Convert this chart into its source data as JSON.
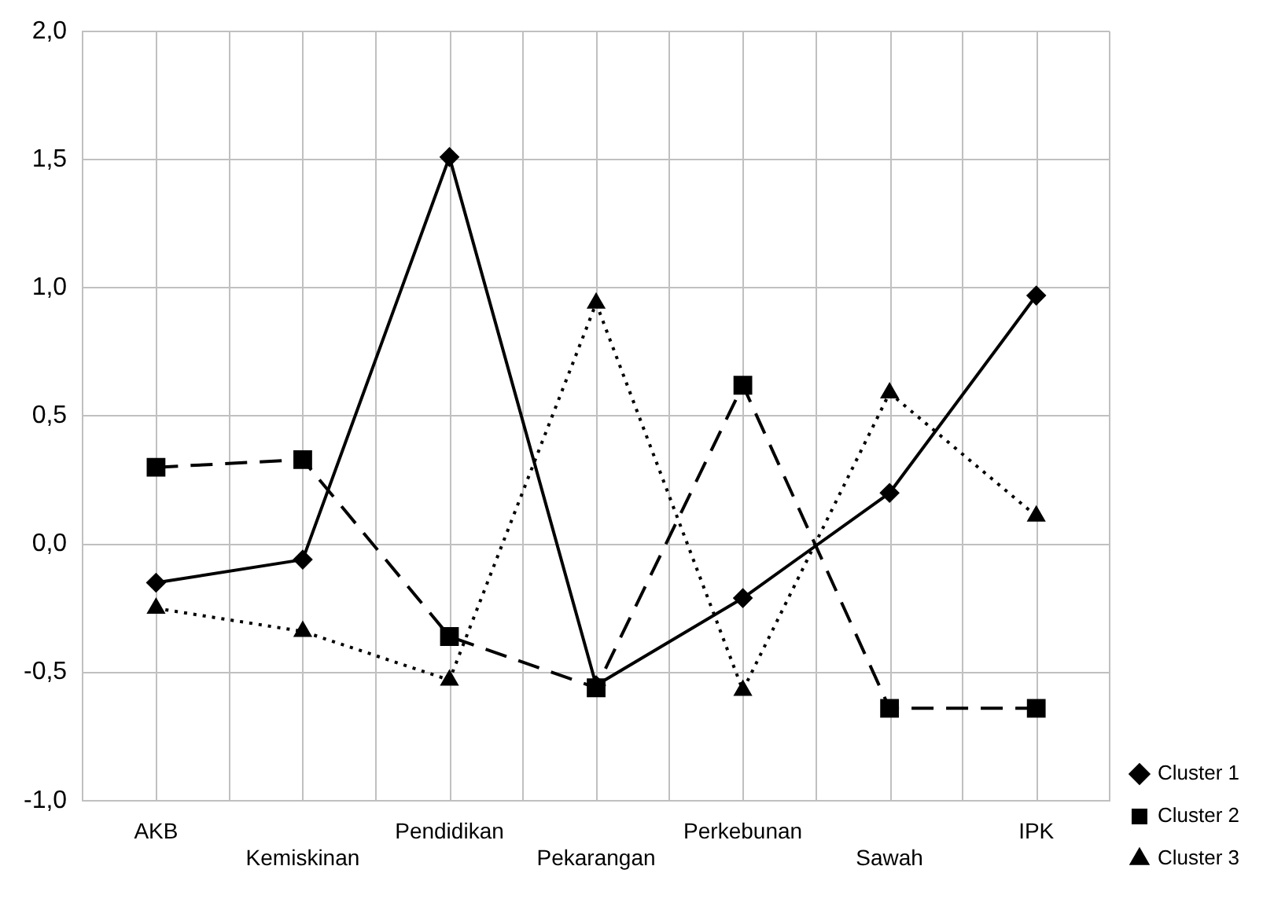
{
  "chart_data": {
    "type": "line",
    "categories": [
      "AKB",
      "Kemiskinan",
      "Pendidikan",
      "Pekarangan",
      "Perkebunan",
      "Sawah",
      "IPK"
    ],
    "series": [
      {
        "name": "Cluster 1",
        "color": "#000000",
        "marker": "diamond",
        "line_style": "solid",
        "values": [
          -0.15,
          -0.06,
          1.51,
          -0.55,
          -0.21,
          0.2,
          0.97
        ]
      },
      {
        "name": "Cluster 2",
        "color": "#000000",
        "marker": "square",
        "line_style": "dashed",
        "values": [
          0.3,
          0.33,
          -0.36,
          -0.56,
          0.62,
          -0.64,
          -0.64
        ]
      },
      {
        "name": "Cluster 3",
        "color": "#000000",
        "marker": "triangle",
        "line_style": "dotted",
        "values": [
          -0.25,
          -0.34,
          -0.53,
          0.94,
          -0.57,
          0.59,
          0.11
        ]
      }
    ],
    "ylim": [
      -1,
      2
    ],
    "yticks": [
      {
        "value": -1,
        "label": "-1,0"
      },
      {
        "value": -0.5,
        "label": "-0,5"
      },
      {
        "value": 0,
        "label": "0,0"
      },
      {
        "value": 0.5,
        "label": "0,5"
      },
      {
        "value": 1,
        "label": "1,0"
      },
      {
        "value": 1.5,
        "label": "1,5"
      },
      {
        "value": 2,
        "label": "2,0"
      }
    ],
    "grid": true,
    "legend": "right"
  }
}
